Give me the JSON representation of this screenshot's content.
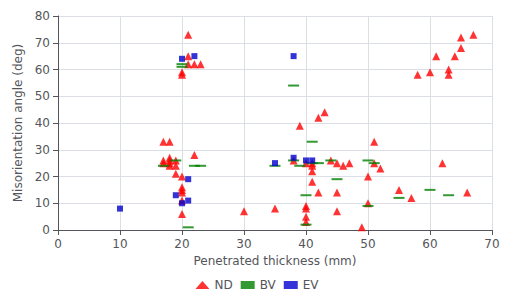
{
  "chart_data": {
    "type": "scatter",
    "xlabel": "Penetrated thickness (mm)",
    "ylabel": "Misorientation angle (deg)",
    "xlim": [
      0,
      70
    ],
    "ylim": [
      0,
      80
    ],
    "xticks": [
      0,
      10,
      20,
      30,
      40,
      50,
      60,
      70
    ],
    "yticks": [
      0,
      10,
      20,
      30,
      40,
      50,
      60,
      70,
      80
    ],
    "grid": true,
    "legend": "bottom",
    "series": [
      {
        "name": "ND",
        "color": "#ff0000",
        "marker": "triangle",
        "x": [
          17,
          17,
          17,
          18,
          18,
          18,
          18,
          18,
          19,
          19,
          19,
          20,
          20,
          20,
          20,
          20,
          20,
          20,
          20,
          21,
          21,
          21,
          22,
          22,
          23,
          30,
          35,
          38,
          39,
          40,
          40,
          40,
          40,
          40,
          41,
          41,
          41,
          41,
          42,
          42,
          43,
          44,
          45,
          45,
          45,
          46,
          47,
          49,
          50,
          50,
          51,
          51,
          52,
          55,
          57,
          58,
          60,
          61,
          62,
          63,
          63,
          64,
          65,
          65,
          66,
          67
        ],
        "values": [
          25,
          26,
          33,
          24,
          25,
          26,
          27,
          33,
          21,
          24,
          26,
          6,
          11,
          14,
          15,
          16,
          20,
          58,
          59,
          62,
          65,
          73,
          28,
          62,
          62,
          7,
          8,
          26,
          39,
          3,
          5,
          8,
          9,
          25,
          18,
          22,
          24,
          25,
          14,
          42,
          44,
          26,
          7,
          14,
          25,
          24,
          25,
          1,
          10,
          20,
          25,
          33,
          23,
          15,
          12,
          58,
          59,
          65,
          25,
          58,
          60,
          65,
          68,
          72,
          14,
          73
        ]
      },
      {
        "name": "BV",
        "color": "#008000",
        "marker": "dash",
        "x": [
          17,
          19,
          20,
          20,
          21,
          22,
          23,
          35,
          38,
          38,
          39,
          40,
          40,
          41,
          41,
          42,
          44,
          45,
          50,
          50,
          51,
          55,
          60,
          63
        ],
        "values": [
          24,
          26,
          61,
          62,
          1,
          24,
          24,
          24,
          26,
          54,
          24,
          2,
          13,
          25,
          33,
          25,
          26,
          19,
          9,
          26,
          25,
          12,
          15,
          13
        ]
      },
      {
        "name": "EV",
        "color": "#0000cd",
        "marker": "square",
        "x": [
          10,
          19,
          20,
          20,
          21,
          21,
          22,
          35,
          38,
          38,
          40,
          41
        ],
        "values": [
          8,
          13,
          10,
          64,
          11,
          19,
          65,
          25,
          27,
          65,
          26,
          26
        ]
      }
    ]
  }
}
